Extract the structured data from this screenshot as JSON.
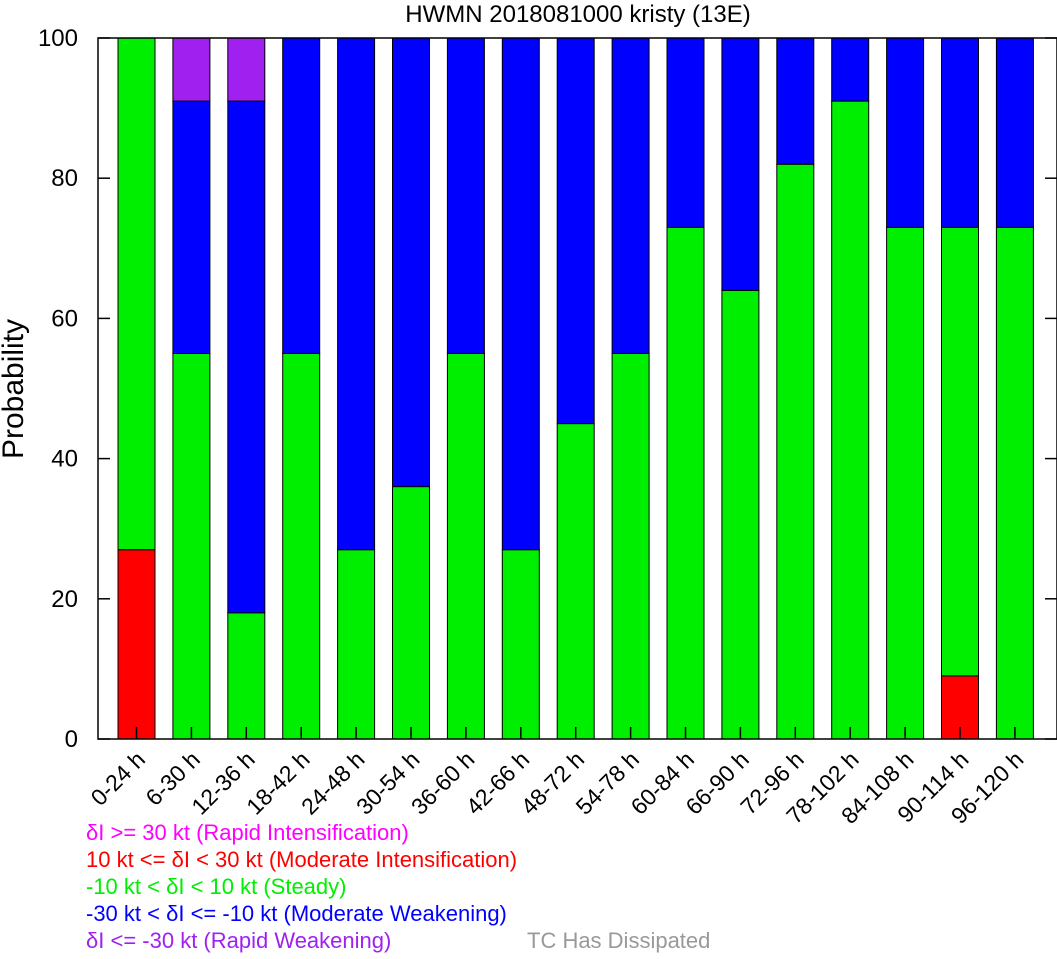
{
  "chart_data": {
    "type": "bar",
    "stacked": true,
    "title": "HWMN 2018081000 kristy (13E)",
    "ylabel": "Probability",
    "ylim": [
      0,
      100
    ],
    "yticks": [
      0,
      20,
      40,
      60,
      80,
      100
    ],
    "categories": [
      "0-24 h",
      "6-30 h",
      "12-36 h",
      "18-42 h",
      "24-48 h",
      "30-54 h",
      "36-60 h",
      "42-66 h",
      "48-72 h",
      "54-78 h",
      "60-84 h",
      "66-90 h",
      "72-96 h",
      "78-102 h",
      "84-108 h",
      "90-114 h",
      "96-120 h"
    ],
    "series": [
      {
        "name": "Rapid Intensification",
        "color": "#ff00ff",
        "values": [
          0,
          0,
          0,
          0,
          0,
          0,
          0,
          0,
          0,
          0,
          0,
          0,
          0,
          0,
          0,
          0,
          0
        ]
      },
      {
        "name": "Moderate Intensification",
        "color": "#ff0000",
        "values": [
          27,
          0,
          0,
          0,
          0,
          0,
          0,
          0,
          0,
          0,
          0,
          0,
          0,
          0,
          0,
          9,
          0
        ]
      },
      {
        "name": "Steady",
        "color": "#00ee00",
        "values": [
          73,
          55,
          18,
          55,
          27,
          36,
          55,
          27,
          45,
          55,
          73,
          64,
          82,
          91,
          73,
          64,
          73
        ]
      },
      {
        "name": "Moderate Weakening",
        "color": "#0000ff",
        "values": [
          0,
          36,
          73,
          45,
          73,
          64,
          45,
          73,
          55,
          45,
          27,
          36,
          18,
          9,
          27,
          27,
          27
        ]
      },
      {
        "name": "Rapid Weakening",
        "color": "#a020f0",
        "values": [
          0,
          9,
          9,
          0,
          0,
          0,
          0,
          0,
          0,
          0,
          0,
          0,
          0,
          0,
          0,
          0,
          0
        ]
      }
    ],
    "stack_order_bottom_to_top": [
      "Moderate Intensification",
      "Steady",
      "Moderate Weakening",
      "Rapid Weakening",
      "Rapid Intensification"
    ],
    "legend": [
      {
        "text": "δI >= 30 kt (Rapid Intensification)",
        "color": "#ff00ff"
      },
      {
        "text": "10 kt <= δI < 30 kt (Moderate Intensification)",
        "color": "#ff0000"
      },
      {
        "text": "-10 kt < δI < 10 kt (Steady)",
        "color": "#00ee00"
      },
      {
        "text": "-30 kt < δI <= -10 kt (Moderate Weakening)",
        "color": "#0000ff"
      },
      {
        "text": "δI <= -30 kt (Rapid Weakening)",
        "color": "#a020f0"
      }
    ],
    "dissipated_label": {
      "text": "TC Has Dissipated",
      "color": "#999999"
    },
    "legend_placement": "bottom-left",
    "grid": false
  }
}
